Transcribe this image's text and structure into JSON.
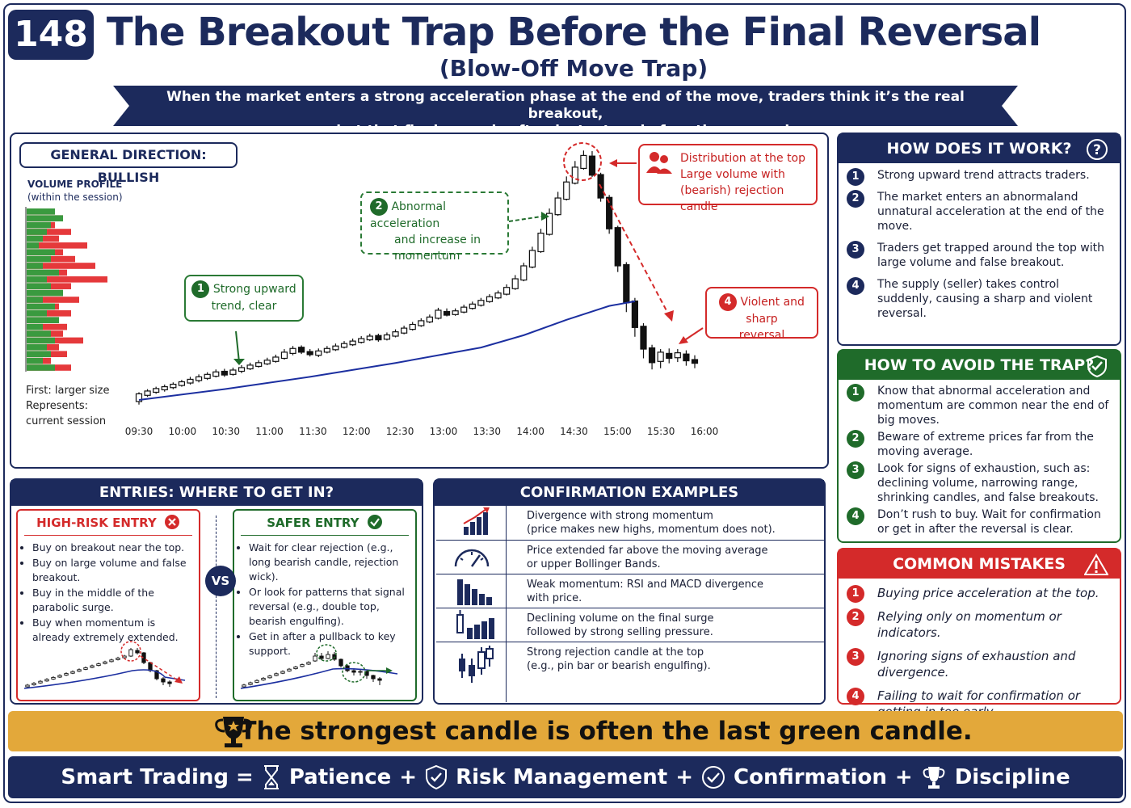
{
  "header": {
    "number": "148",
    "title": "The Breakout Trap Before the Final Reversal",
    "subtitle": "(Blow-Off Move Trap)",
    "banner_line1": "When the market enters a strong acceleration phase at the end of the move, traders think it’s the real breakout,",
    "banner_line2": "but that final surge is often just a trap before the reversal."
  },
  "chart_panel": {
    "direction_label": "GENERAL DIRECTION: BULLISH",
    "volume_profile_title": "VOLUME PROFILE",
    "volume_profile_sub": "(within the session)",
    "note_line1": "First: larger size",
    "note_line2": "Represents:",
    "note_line3": "current session",
    "annotations": {
      "a1_num": "1",
      "a1_line1": "Strong upward",
      "a1_line2": "trend, clear",
      "a2_num": "2",
      "a2_line1": "Abnormal acceleration",
      "a2_line2": "and increase in",
      "a2_line3": "momentum",
      "a3_line1": "Distribution at the top",
      "a3_line2": "Large volume with",
      "a3_line3": "(bearish) rejection candle",
      "a4_num": "4",
      "a4_line1": "Violent and sharp",
      "a4_line2": "reversal"
    }
  },
  "chart_data": {
    "type": "candlestick",
    "x_ticks": [
      "09:30",
      "10:00",
      "10:30",
      "11:00",
      "11:30",
      "12:00",
      "12:30",
      "13:00",
      "13:30",
      "14:00",
      "14:30",
      "15:00",
      "15:30",
      "16:00"
    ],
    "candles": [
      [
        100.0,
        102.5,
        99.0,
        103.0
      ],
      [
        102.0,
        103.4,
        101.5,
        104.0
      ],
      [
        103.0,
        104.2,
        102.5,
        104.8
      ],
      [
        103.8,
        104.8,
        103.2,
        105.5
      ],
      [
        104.5,
        105.6,
        104.0,
        106.2
      ],
      [
        105.2,
        106.4,
        104.8,
        107.0
      ],
      [
        106.0,
        107.2,
        105.5,
        108.0
      ],
      [
        106.8,
        108.0,
        106.2,
        108.8
      ],
      [
        107.5,
        108.8,
        107.0,
        109.5
      ],
      [
        108.2,
        109.6,
        107.8,
        110.4
      ],
      [
        109.8,
        108.6,
        108.0,
        110.6
      ],
      [
        108.8,
        110.2,
        108.4,
        111.0
      ],
      [
        109.8,
        111.0,
        109.2,
        111.8
      ],
      [
        110.6,
        111.8,
        110.2,
        112.6
      ],
      [
        111.4,
        112.6,
        111.0,
        113.4
      ],
      [
        112.2,
        113.4,
        111.8,
        114.2
      ],
      [
        113.0,
        114.4,
        112.6,
        115.2
      ],
      [
        114.0,
        116.0,
        113.6,
        117.0
      ],
      [
        115.6,
        117.2,
        115.0,
        118.0
      ],
      [
        117.6,
        116.0,
        115.4,
        118.2
      ],
      [
        116.2,
        115.2,
        114.6,
        117.0
      ],
      [
        115.0,
        116.4,
        114.4,
        117.2
      ],
      [
        116.0,
        117.2,
        115.6,
        118.0
      ],
      [
        116.8,
        118.0,
        116.4,
        118.8
      ],
      [
        117.6,
        118.8,
        117.2,
        119.6
      ],
      [
        118.4,
        119.6,
        118.0,
        120.4
      ],
      [
        119.2,
        120.4,
        118.8,
        121.2
      ],
      [
        120.0,
        121.2,
        119.6,
        122.0
      ],
      [
        121.4,
        120.0,
        119.4,
        122.0
      ],
      [
        120.2,
        121.6,
        119.8,
        122.4
      ],
      [
        121.2,
        122.6,
        120.8,
        123.4
      ],
      [
        122.2,
        123.8,
        121.8,
        124.6
      ],
      [
        123.4,
        125.0,
        123.0,
        125.8
      ],
      [
        124.6,
        126.2,
        124.2,
        127.0
      ],
      [
        125.8,
        127.4,
        125.4,
        128.2
      ],
      [
        127.0,
        129.6,
        126.6,
        130.4
      ],
      [
        129.2,
        128.0,
        127.6,
        130.2
      ],
      [
        128.2,
        129.4,
        127.8,
        130.2
      ],
      [
        129.0,
        130.6,
        128.6,
        131.4
      ],
      [
        130.2,
        131.6,
        129.8,
        132.4
      ],
      [
        131.2,
        132.8,
        130.8,
        133.6
      ],
      [
        132.4,
        134.0,
        132.0,
        134.8
      ],
      [
        133.6,
        135.2,
        133.2,
        136.0
      ],
      [
        134.8,
        137.0,
        134.4,
        138.0
      ],
      [
        136.6,
        139.8,
        136.2,
        141.0
      ],
      [
        139.4,
        144.0,
        139.0,
        145.0
      ],
      [
        143.6,
        149.0,
        143.2,
        150.2
      ],
      [
        148.6,
        154.6,
        148.2,
        156.0
      ],
      [
        154.2,
        161.0,
        153.8,
        162.6
      ],
      [
        160.6,
        166.0,
        160.2,
        168.0
      ],
      [
        165.6,
        171.2,
        165.2,
        173.0
      ],
      [
        170.8,
        176.0,
        170.4,
        178.0
      ],
      [
        175.6,
        179.8,
        175.2,
        181.4
      ],
      [
        179.6,
        173.4,
        172.8,
        181.2
      ],
      [
        173.6,
        166.0,
        164.8,
        174.2
      ],
      [
        166.2,
        156.0,
        154.4,
        167.0
      ],
      [
        156.4,
        144.0,
        142.0,
        157.0
      ],
      [
        144.4,
        132.0,
        129.0,
        145.2
      ],
      [
        132.6,
        124.0,
        121.0,
        133.6
      ],
      [
        124.4,
        117.0,
        114.0,
        125.4
      ],
      [
        117.4,
        112.6,
        110.4,
        118.4
      ],
      [
        113.0,
        116.0,
        110.8,
        117.0
      ],
      [
        115.6,
        114.0,
        112.4,
        117.2
      ],
      [
        114.2,
        115.8,
        112.8,
        117.0
      ],
      [
        115.4,
        113.2,
        111.6,
        116.6
      ],
      [
        113.6,
        112.4,
        110.8,
        115.0
      ]
    ],
    "moving_average": [
      [
        0,
        100.5
      ],
      [
        10,
        104.0
      ],
      [
        20,
        108.0
      ],
      [
        30,
        112.5
      ],
      [
        40,
        117.5
      ],
      [
        45,
        121.5
      ],
      [
        50,
        126.5
      ],
      [
        55,
        131.0
      ],
      [
        58,
        132.5
      ]
    ],
    "volume_profile": [
      [
        0.35,
        0.15
      ],
      [
        0.45,
        0.2
      ],
      [
        0.3,
        0.35
      ],
      [
        0.25,
        0.55
      ],
      [
        0.2,
        0.4
      ],
      [
        0.15,
        0.75
      ],
      [
        0.35,
        0.45
      ],
      [
        0.3,
        0.6
      ],
      [
        0.2,
        0.85
      ],
      [
        0.4,
        0.5
      ],
      [
        0.25,
        1.0
      ],
      [
        0.3,
        0.55
      ],
      [
        0.45,
        0.35
      ],
      [
        0.2,
        0.65
      ],
      [
        0.35,
        0.4
      ],
      [
        0.25,
        0.55
      ],
      [
        0.4,
        0.3
      ],
      [
        0.2,
        0.5
      ],
      [
        0.3,
        0.45
      ],
      [
        0.35,
        0.7
      ],
      [
        0.25,
        0.4
      ],
      [
        0.3,
        0.5
      ],
      [
        0.2,
        0.3
      ],
      [
        0.35,
        0.55
      ]
    ]
  },
  "how_it_works": {
    "title": "HOW DOES IT WORK?",
    "items": [
      {
        "num": "1",
        "text": "Strong upward trend attracts traders."
      },
      {
        "num": "2",
        "text": "The market enters an abnormaland unnatural acceleration at the end of the move."
      },
      {
        "num": "3",
        "text": "Traders get trapped around the top with large volume and false breakout."
      },
      {
        "num": "4",
        "text": "The supply (seller) takes control suddenly, causing a sharp and violent reversal."
      }
    ]
  },
  "avoid_trap": {
    "title": "HOW TO AVOID THE TRAP?",
    "items": [
      {
        "num": "1",
        "text": "Know that abnormal acceleration and momentum are common near the end of big moves."
      },
      {
        "num": "2",
        "text": "Beware of extreme prices far from the moving average."
      },
      {
        "num": "3",
        "text": "Look for signs of exhaustion, such as: declining volume, narrowing range, shrinking candles, and false breakouts."
      },
      {
        "num": "4",
        "text": "Don’t rush to buy. Wait for confirmation or get in after the reversal is clear."
      }
    ]
  },
  "mistakes": {
    "title": "COMMON MISTAKES",
    "items": [
      {
        "num": "1",
        "text": "Buying price acceleration at the top."
      },
      {
        "num": "2",
        "text": "Relying only on momentum or indicators."
      },
      {
        "num": "3",
        "text": "Ignoring signs of exhaustion and divergence."
      },
      {
        "num": "4",
        "text": "Failing to wait for confirmation or getting in too early."
      }
    ]
  },
  "entries": {
    "title": "ENTRIES: WHERE TO GET IN?",
    "vs": "VS",
    "high_risk": {
      "title": "HIGH-RISK ENTRY",
      "items": [
        "Buy on breakout near the top.",
        "Buy on large volume and false breakout.",
        "Buy in the middle of the parabolic surge.",
        "Buy when momentum is already extremely extended."
      ]
    },
    "safer": {
      "title": "SAFER ENTRY",
      "items": [
        "Wait for clear rejection (e.g., long bearish candle, rejection wick).",
        "Or look for patterns that signal reversal (e.g., double top, bearish engulfing).",
        "Get in after a pullback to key support."
      ]
    }
  },
  "confirmation": {
    "title": "CONFIRMATION EXAMPLES",
    "rows": [
      {
        "line1": "Divergence with strong momentum",
        "line2": "(price makes new highs, momentum does not)."
      },
      {
        "line1": "Price extended far above the moving average",
        "line2": "or upper Bollinger Bands."
      },
      {
        "line1": "Weak momentum: RSI and MACD divergence",
        "line2": "with price."
      },
      {
        "line1": "Declining volume on the final surge",
        "line2": "followed by strong selling pressure."
      },
      {
        "line1": "Strong rejection candle at the top",
        "line2": "(e.g., pin bar or bearish engulfing)."
      }
    ]
  },
  "footer": {
    "quote": "The strongest candle is often the last green candle.",
    "formula_start": "Smart Trading =",
    "patience": "Patience",
    "risk": "Risk Management",
    "confirmation": "Confirmation",
    "discipline": "Discipline",
    "plus": "+"
  },
  "colors": {
    "navy": "#1c2a5c",
    "green": "#1f6b2a",
    "red": "#d42a2a",
    "gold": "#e3a83a"
  }
}
